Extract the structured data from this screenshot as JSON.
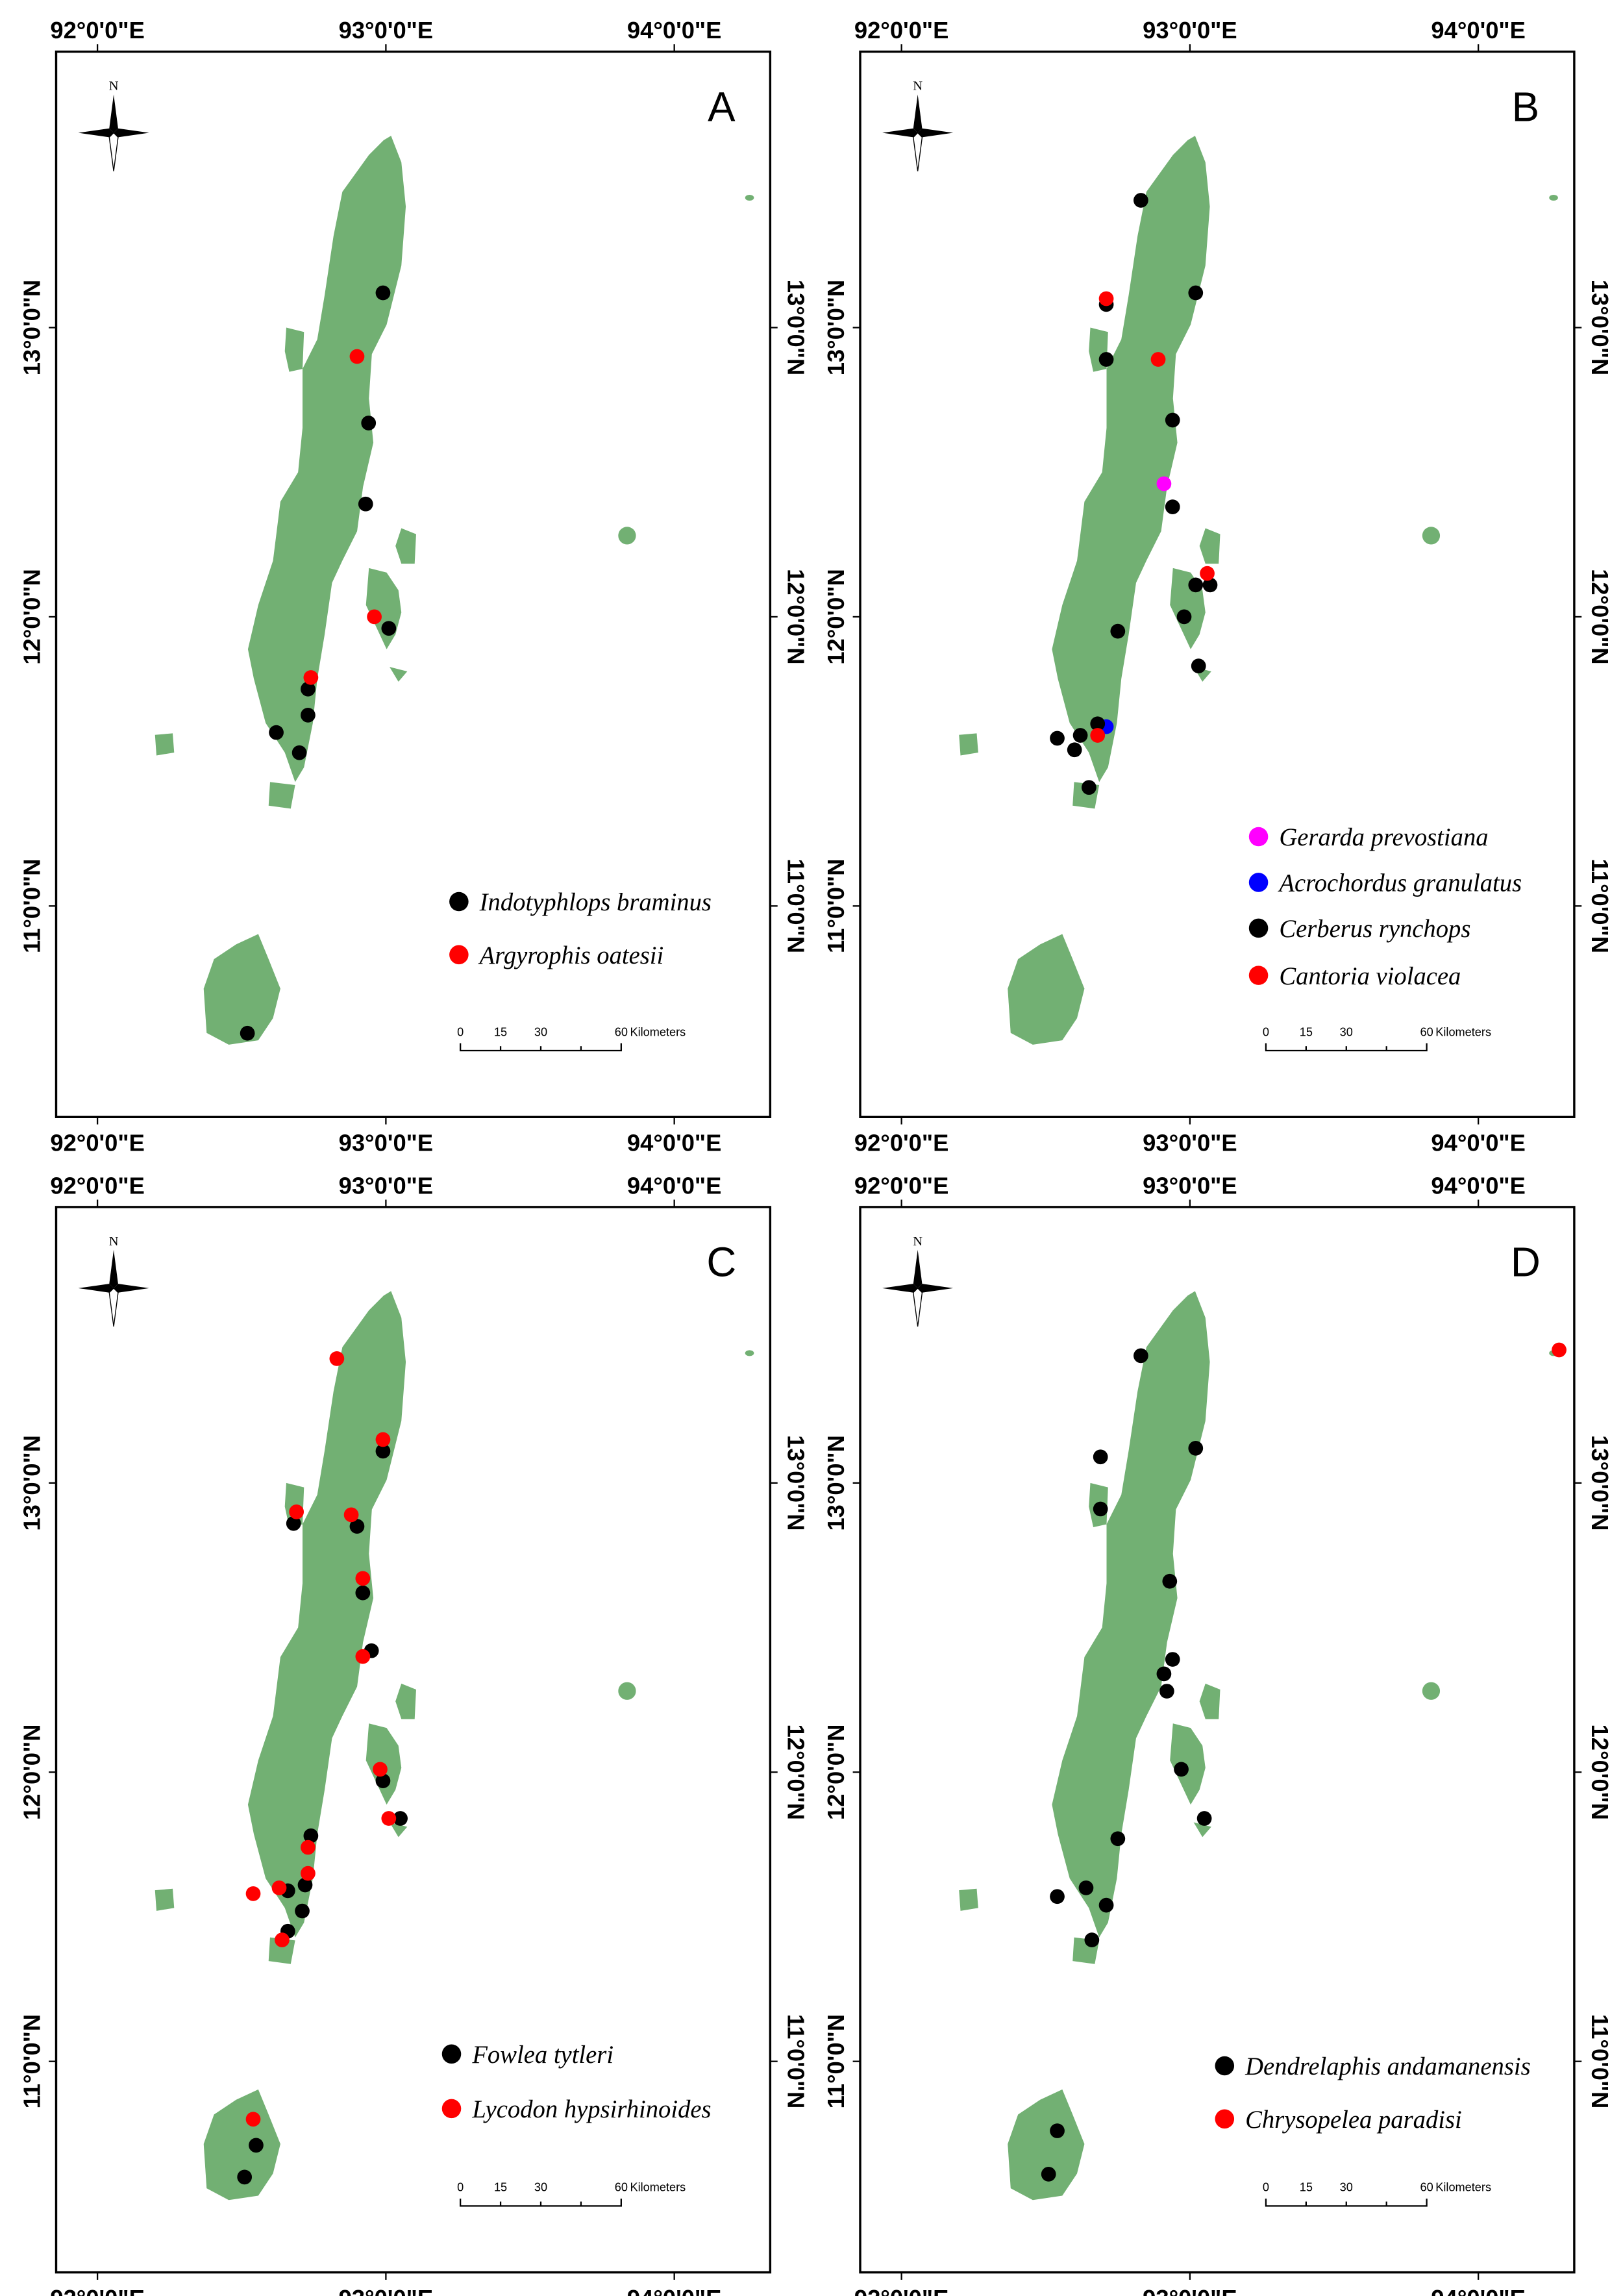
{
  "colors": {
    "land": "#72b073",
    "black": "#000000",
    "red": "#ff0000",
    "magenta": "#ff00ff",
    "blue": "#0000ff"
  },
  "axes": {
    "lon_ticks": [
      {
        "value": 92,
        "label": "92°0'0\"E"
      },
      {
        "value": 93,
        "label": "93°0'0\"E"
      },
      {
        "value": 94,
        "label": "94°0'0\"E"
      }
    ],
    "lat_ticks": [
      {
        "value": 13,
        "label": "13°0'0\"N"
      },
      {
        "value": 12,
        "label": "12°0'0\"N"
      },
      {
        "value": 11,
        "label": "11°0'0\"N"
      }
    ],
    "lon_range": [
      91.86,
      94.33
    ],
    "lat_range": [
      10.27,
      13.95
    ]
  },
  "compass_label": "N",
  "scale_bar": {
    "labels": [
      "0",
      "15",
      "30",
      "60"
    ],
    "unit": "Kilometers"
  },
  "panels": [
    {
      "letter": "A",
      "legend": [
        {
          "name": "Indotyphlops braminus",
          "color": "black",
          "points": [
            [
              92.99,
              13.12
            ],
            [
              92.94,
              12.67
            ],
            [
              92.93,
              12.39
            ],
            [
              93.01,
              11.96
            ],
            [
              92.73,
              11.75
            ],
            [
              92.73,
              11.66
            ],
            [
              92.62,
              11.6
            ],
            [
              92.7,
              11.53
            ],
            [
              92.52,
              10.56
            ]
          ]
        },
        {
          "name": "Argyrophis oatesii",
          "color": "red",
          "points": [
            [
              92.9,
              12.9
            ],
            [
              92.96,
              12.0
            ],
            [
              92.74,
              11.79
            ]
          ]
        }
      ]
    },
    {
      "letter": "B",
      "legend": [
        {
          "name": "Gerarda prevostiana",
          "color": "magenta",
          "points": [
            [
              92.91,
              12.46
            ]
          ]
        },
        {
          "name": "Acrochordus granulatus",
          "color": "blue",
          "points": [
            [
              92.71,
              11.62
            ]
          ]
        },
        {
          "name": "Cerberus rynchops",
          "color": "black",
          "points": [
            [
              92.83,
              13.44
            ],
            [
              93.02,
              13.12
            ],
            [
              92.71,
              13.08
            ],
            [
              92.71,
              12.89
            ],
            [
              92.94,
              12.68
            ],
            [
              92.94,
              12.38
            ],
            [
              93.02,
              12.11
            ],
            [
              93.07,
              12.11
            ],
            [
              92.98,
              12.0
            ],
            [
              93.03,
              11.83
            ],
            [
              92.75,
              11.95
            ],
            [
              92.68,
              11.63
            ],
            [
              92.54,
              11.58
            ],
            [
              92.62,
              11.59
            ],
            [
              92.6,
              11.54
            ],
            [
              92.65,
              11.41
            ]
          ]
        },
        {
          "name": "Cantoria violacea",
          "color": "red",
          "points": [
            [
              92.71,
              13.1
            ],
            [
              92.89,
              12.89
            ],
            [
              93.06,
              12.15
            ],
            [
              92.68,
              11.59
            ]
          ]
        }
      ]
    },
    {
      "letter": "C",
      "legend": [
        {
          "name": "Fowlea tytleri",
          "color": "black",
          "points": [
            [
              92.99,
              13.11
            ],
            [
              92.9,
              12.85
            ],
            [
              92.68,
              12.86
            ],
            [
              92.92,
              12.62
            ],
            [
              92.95,
              12.42
            ],
            [
              92.99,
              11.97
            ],
            [
              93.05,
              11.84
            ],
            [
              92.74,
              11.78
            ],
            [
              92.72,
              11.61
            ],
            [
              92.66,
              11.59
            ],
            [
              92.71,
              11.52
            ],
            [
              92.66,
              11.45
            ],
            [
              92.55,
              10.71
            ],
            [
              92.51,
              10.6
            ]
          ]
        },
        {
          "name": "Lycodon hypsirhinoides",
          "color": "red",
          "points": [
            [
              92.83,
              13.43
            ],
            [
              92.99,
              13.15
            ],
            [
              92.69,
              12.9
            ],
            [
              92.88,
              12.89
            ],
            [
              92.92,
              12.67
            ],
            [
              92.92,
              12.4
            ],
            [
              92.98,
              12.01
            ],
            [
              93.01,
              11.84
            ],
            [
              92.73,
              11.74
            ],
            [
              92.73,
              11.65
            ],
            [
              92.63,
              11.6
            ],
            [
              92.54,
              11.58
            ],
            [
              92.64,
              11.42
            ],
            [
              92.54,
              10.8
            ]
          ]
        }
      ]
    },
    {
      "letter": "D",
      "legend": [
        {
          "name": "Dendrelaphis andamanensis",
          "color": "black",
          "points": [
            [
              92.83,
              13.44
            ],
            [
              93.02,
              13.12
            ],
            [
              92.69,
              13.09
            ],
            [
              92.69,
              12.91
            ],
            [
              92.93,
              12.66
            ],
            [
              92.94,
              12.39
            ],
            [
              92.91,
              12.34
            ],
            [
              92.92,
              12.28
            ],
            [
              92.97,
              12.01
            ],
            [
              93.05,
              11.84
            ],
            [
              92.75,
              11.77
            ],
            [
              92.64,
              11.6
            ],
            [
              92.54,
              11.57
            ],
            [
              92.71,
              11.54
            ],
            [
              92.66,
              11.42
            ],
            [
              92.54,
              10.76
            ],
            [
              92.51,
              10.61
            ]
          ]
        },
        {
          "name": "Chrysopelea paradisi",
          "color": "red",
          "points": [
            [
              94.28,
              13.46
            ]
          ]
        }
      ]
    }
  ]
}
